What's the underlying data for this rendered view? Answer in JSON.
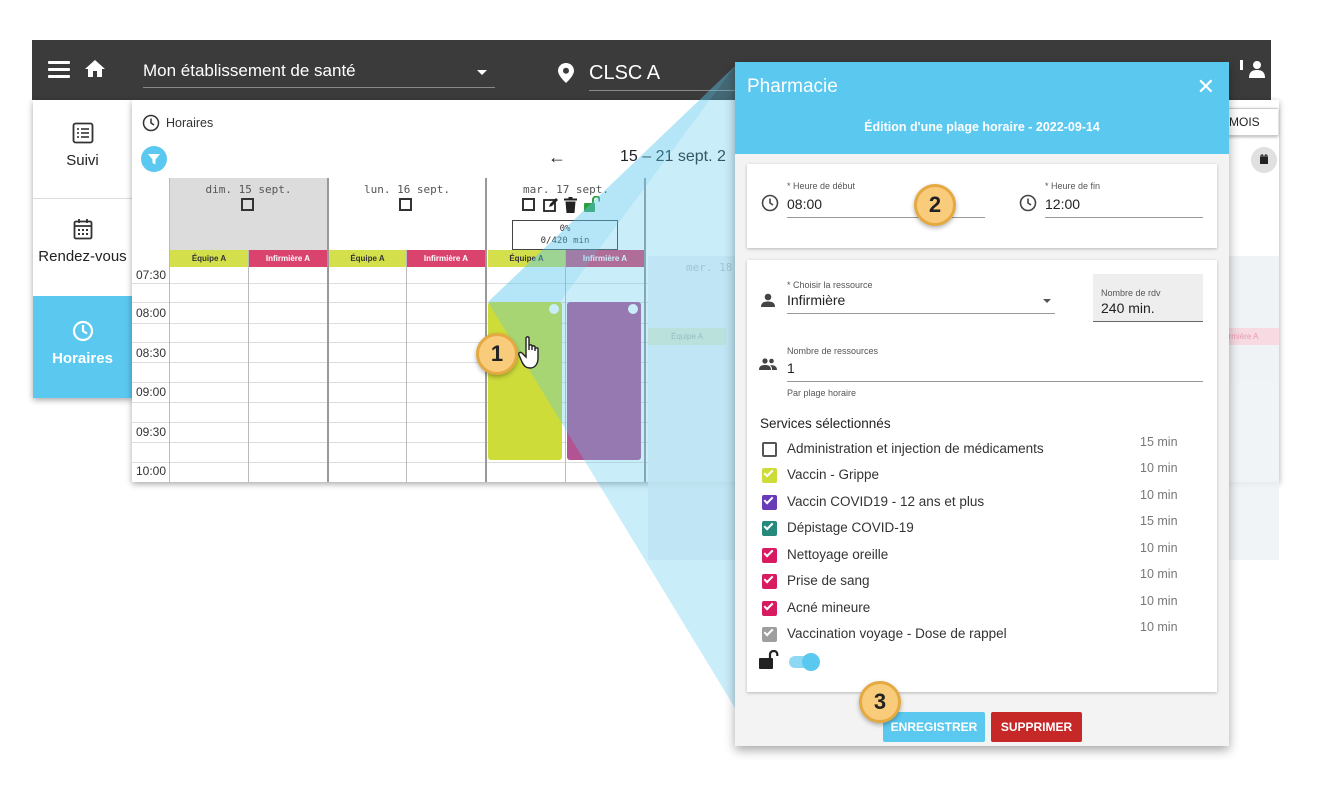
{
  "topbar": {
    "establishment": "Mon établissement de santé",
    "location": "CLSC A"
  },
  "nav": {
    "items": [
      {
        "label": "Suivi",
        "icon": "list-icon"
      },
      {
        "label": "Rendez-vous",
        "icon": "calendar-icon"
      },
      {
        "label": "Horaires",
        "icon": "clock-icon"
      }
    ]
  },
  "calendar": {
    "breadcrumb": "Horaires",
    "range": "15 – 21 sept. 2",
    "view_button": "MOIS",
    "days": [
      {
        "label": "dim. 15 sept."
      },
      {
        "label": "lun. 16 sept."
      },
      {
        "label": "mar. 17 sept."
      },
      {
        "label": "mer. 18"
      }
    ],
    "stat_percent": "0%",
    "stat_minutes": "0/420 min",
    "resources": [
      "Équipe A",
      "Infirmière A"
    ],
    "faded_resource": "rmière A",
    "times": [
      "07:30",
      "08:00",
      "08:30",
      "09:00",
      "09:30",
      "10:00"
    ]
  },
  "dialog": {
    "title": "Pharmacie",
    "subtitle": "Édition d'une plage horaire - 2022-09-14",
    "start_label": "* Heure de début",
    "start_value": "08:00",
    "end_label": "* Heure de fin",
    "end_value": "12:00",
    "resource_label": "* Choisir la ressource",
    "resource_value": "Infirmière",
    "rdv_label": "Nombre de rdv",
    "rdv_value": "240 min.",
    "count_label": "Nombre de ressources",
    "count_value": "1",
    "count_hint": "Par plage horaire",
    "services_title": "Services sélectionnés",
    "services": [
      {
        "label": "Administration et injection de médicaments",
        "duration": "15 min",
        "checked": false,
        "color": "#555555"
      },
      {
        "label": "Vaccin - Grippe",
        "duration": "10 min",
        "checked": true,
        "color": "#cddc39"
      },
      {
        "label": "Vaccin COVID19 - 12 ans et plus",
        "duration": "10 min",
        "checked": true,
        "color": "#673ab7"
      },
      {
        "label": "Dépistage COVID-19",
        "duration": "15 min",
        "checked": true,
        "color": "#26897b"
      },
      {
        "label": "Nettoyage oreille",
        "duration": "10 min",
        "checked": true,
        "color": "#d81b60"
      },
      {
        "label": "Prise de sang",
        "duration": "10 min",
        "checked": true,
        "color": "#d81b60"
      },
      {
        "label": "Acné mineure",
        "duration": "10 min",
        "checked": true,
        "color": "#d81b60"
      },
      {
        "label": "Vaccination voyage - Dose de rappel",
        "duration": "10 min",
        "checked": true,
        "color": "#9e9e9e"
      }
    ],
    "save_label": "ENREGISTRER",
    "delete_label": "SUPPRIMER"
  },
  "callouts": [
    "1",
    "2",
    "3"
  ],
  "colors": {
    "accent": "#5bc8ef",
    "topbar": "#3b3b3b",
    "team": "#d4df4c",
    "nurse": "#d9436e",
    "delete": "#c62828"
  }
}
